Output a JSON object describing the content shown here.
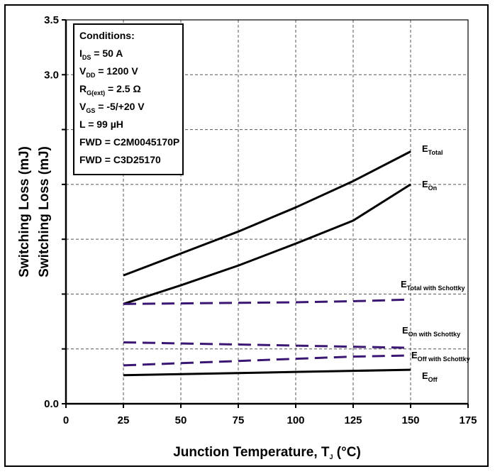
{
  "chart_data": {
    "type": "line",
    "title": "",
    "xlabel": "Junction Temperature, T",
    "xlabel_sub": "J",
    "xlabel_unit": " (°C)",
    "ylabel": "Switching Loss (mJ)",
    "ylabel_ghost": "Switching Loss (mJ)",
    "xlim": [
      0,
      175
    ],
    "ylim": [
      0,
      3.5
    ],
    "xticks": [
      0,
      25,
      50,
      75,
      100,
      125,
      150,
      175
    ],
    "yticks_labeled": [
      0.0,
      3.0,
      3.5
    ],
    "ytick_labels": [
      "0.0",
      "3.0",
      "3.5"
    ],
    "grid": true,
    "conditions": {
      "title": "Conditions:",
      "lines": [
        {
          "main": "I",
          "sub": "DS",
          "rest": " = 50 A"
        },
        {
          "main": "V",
          "sub": "DD",
          "rest": " = 1200 V"
        },
        {
          "main": "R",
          "sub": "G(ext)",
          "rest": " = 2.5 Ω"
        },
        {
          "main": "V",
          "sub": "GS",
          "rest": " = -5/+20 V"
        },
        {
          "main": "L = 99 µH",
          "sub": "",
          "rest": ""
        },
        {
          "main": "FWD = C2M0045170P",
          "sub": "",
          "rest": ""
        }
      ],
      "highlight_line": "FWD = C3D25170"
    },
    "series": [
      {
        "name": "E",
        "name_sub": "Total",
        "style": "solid",
        "color": "#000000",
        "x": [
          25,
          50,
          75,
          100,
          125,
          150
        ],
        "y": [
          1.17,
          1.37,
          1.57,
          1.79,
          2.03,
          2.3
        ]
      },
      {
        "name": "E",
        "name_sub": "On",
        "style": "solid",
        "color": "#000000",
        "x": [
          25,
          50,
          75,
          100,
          125,
          150
        ],
        "y": [
          0.91,
          1.08,
          1.26,
          1.46,
          1.67,
          2.0
        ]
      },
      {
        "name": "E",
        "name_sub": "Off",
        "style": "solid",
        "color": "#000000",
        "x": [
          25,
          50,
          75,
          100,
          125,
          150
        ],
        "y": [
          0.26,
          0.27,
          0.28,
          0.29,
          0.3,
          0.31
        ]
      },
      {
        "name": "E",
        "name_sub": "Total with Schottky",
        "style": "dashed",
        "color": "#3b1672",
        "x": [
          25,
          50,
          75,
          100,
          125,
          150
        ],
        "y": [
          0.91,
          0.915,
          0.92,
          0.925,
          0.935,
          0.95
        ]
      },
      {
        "name": "E",
        "name_sub": "On with Schottky",
        "style": "dashed",
        "color": "#3b1672",
        "x": [
          25,
          50,
          75,
          100,
          125,
          150
        ],
        "y": [
          0.56,
          0.55,
          0.54,
          0.53,
          0.52,
          0.51
        ]
      },
      {
        "name": "E",
        "name_sub": "Off with Schottky",
        "style": "dashed",
        "color": "#3b1672",
        "x": [
          25,
          50,
          75,
          100,
          125,
          150
        ],
        "y": [
          0.35,
          0.37,
          0.39,
          0.41,
          0.43,
          0.44
        ]
      }
    ]
  }
}
